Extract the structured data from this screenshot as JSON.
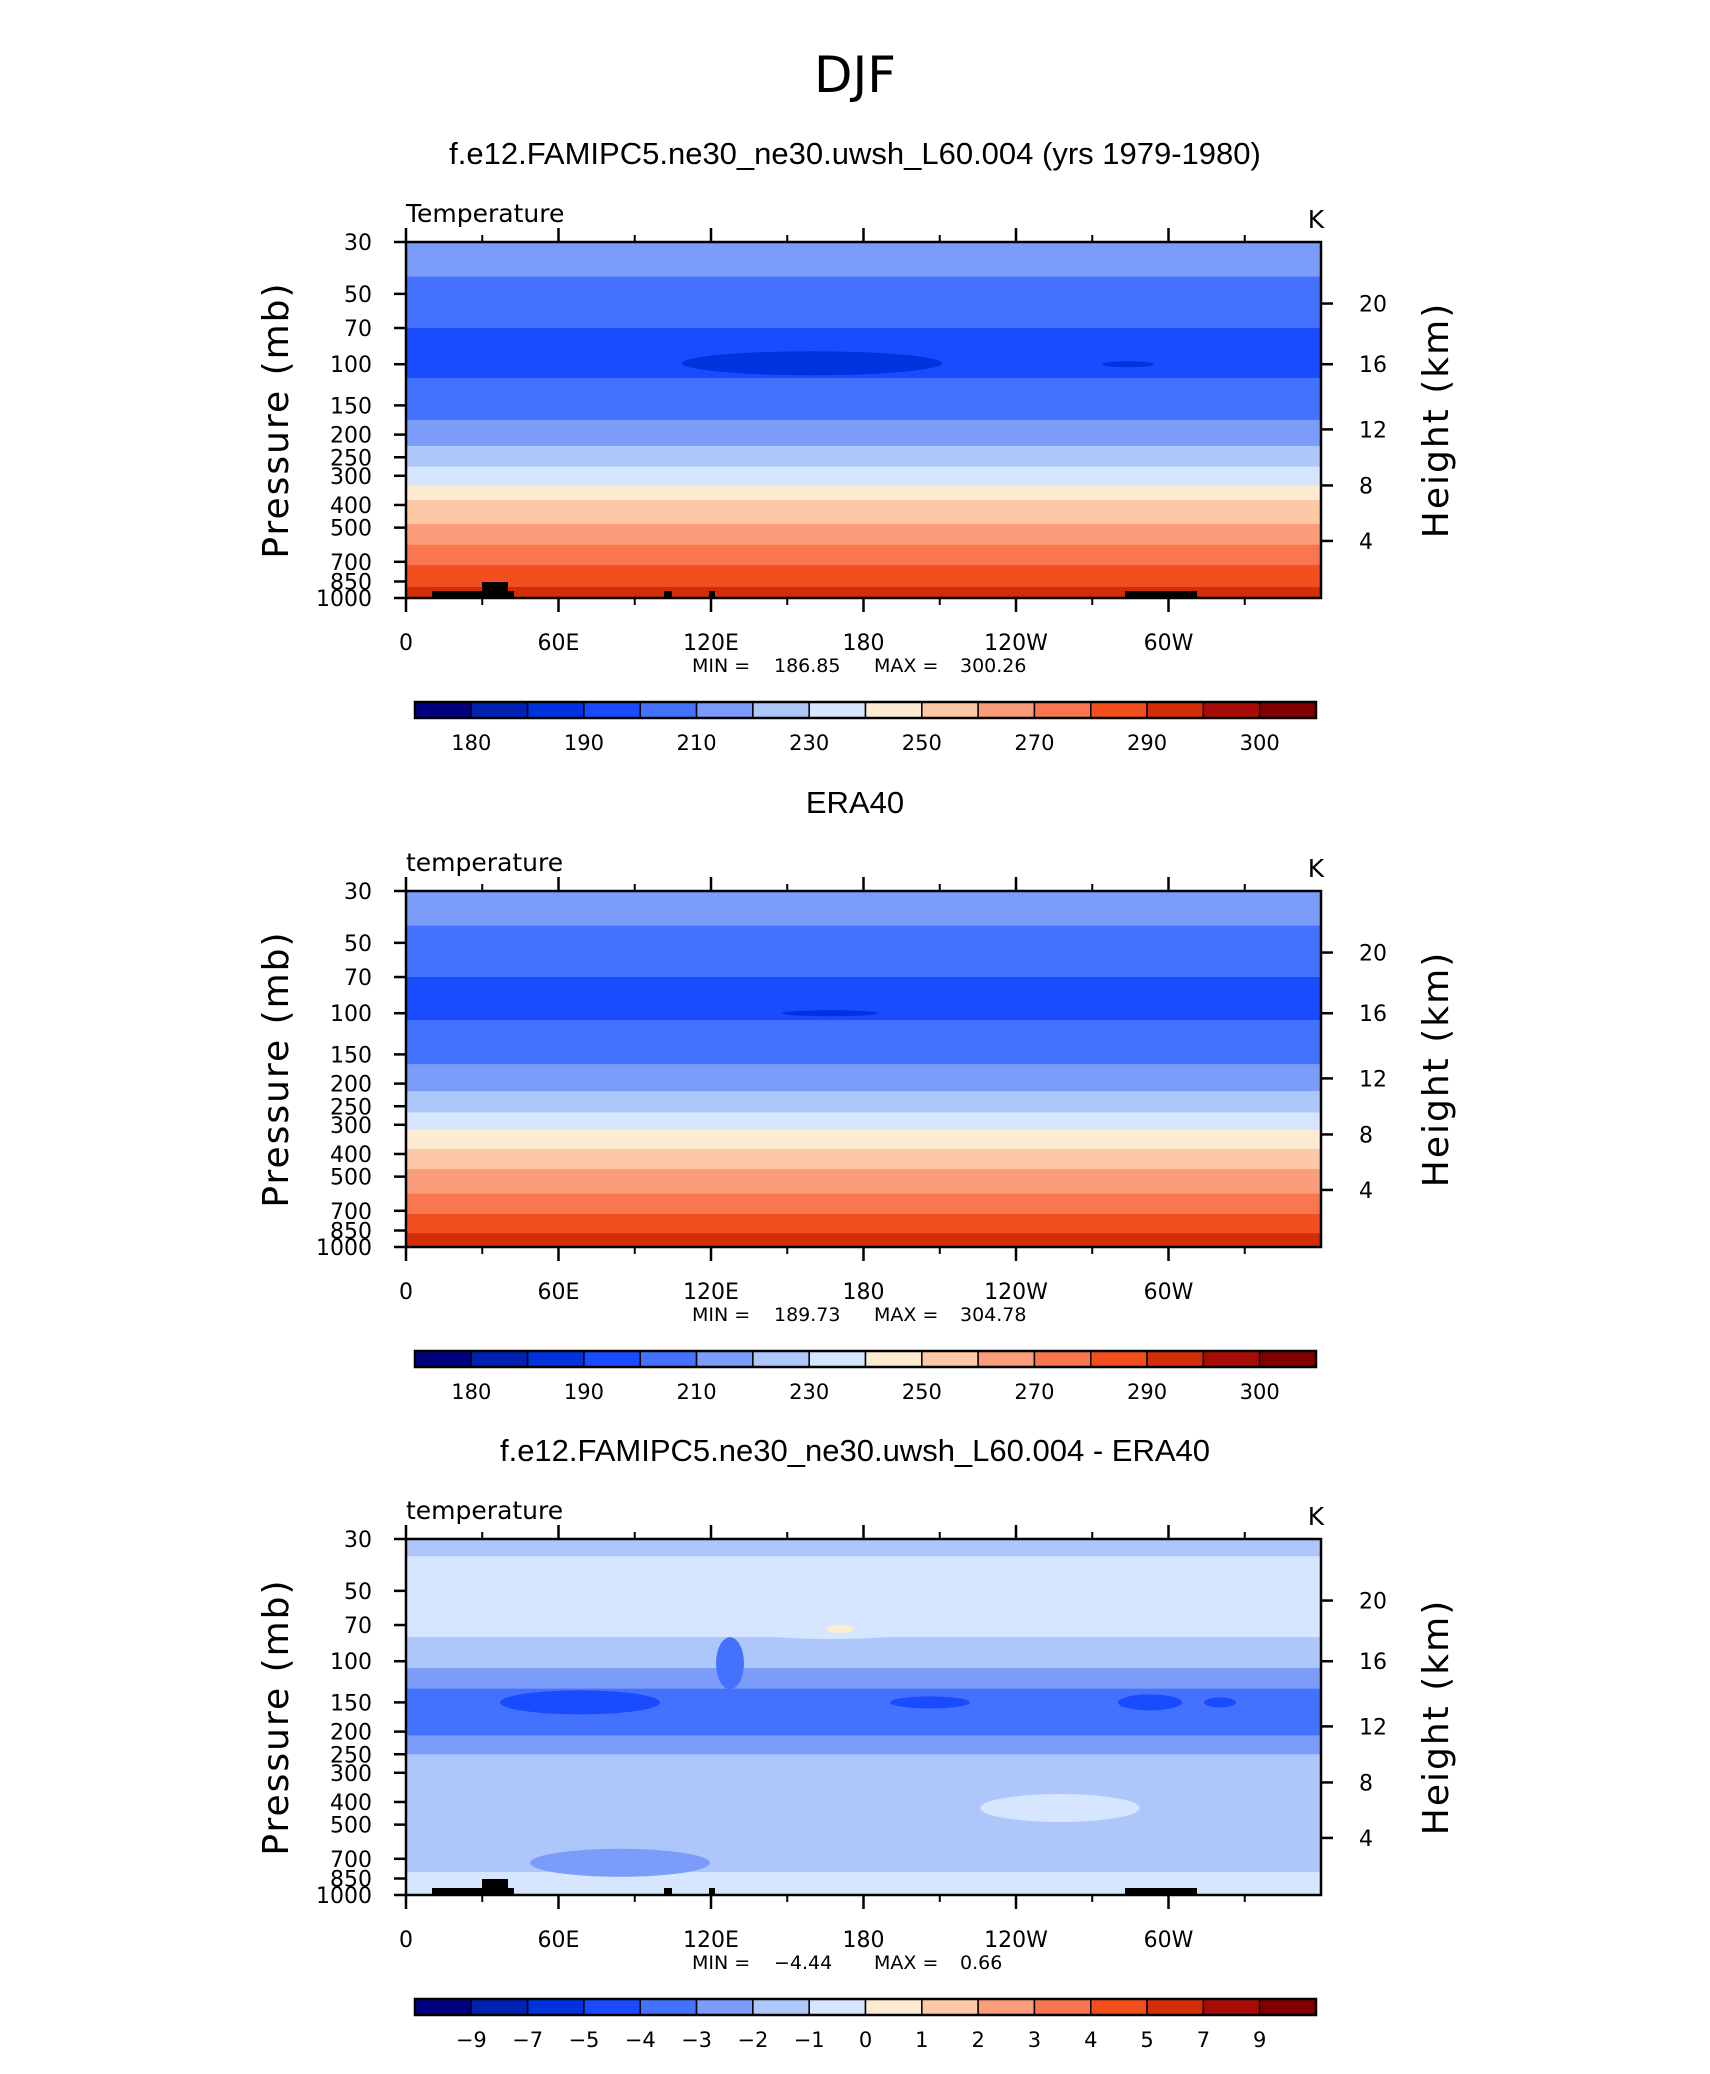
{
  "title": "DJF",
  "panels": [
    {
      "title": "f.e12.FAMIPC5.ne30_ne30.uwsh_L60.004 (yrs 1979-1980)",
      "left_label": "Temperature",
      "units": "K",
      "ylabel": "Pressure  (mb)",
      "ylabel_right": "Height  (km)",
      "min_label": "MIN = ",
      "min_value": "186.85",
      "max_label": "MAX = ",
      "max_value": "300.26",
      "colorbar": "abs",
      "topo": true,
      "field": "model"
    },
    {
      "title": "ERA40",
      "left_label": "temperature",
      "units": "K",
      "ylabel": "Pressure  (mb)",
      "ylabel_right": "Height  (km)",
      "min_label": "MIN = ",
      "min_value": "189.73",
      "max_label": "MAX = ",
      "max_value": "304.78",
      "colorbar": "abs",
      "topo": false,
      "field": "obs"
    },
    {
      "title": "f.e12.FAMIPC5.ne30_ne30.uwsh_L60.004 - ERA40",
      "left_label": "temperature",
      "units": "K",
      "ylabel": "Pressure  (mb)",
      "ylabel_right": "Height  (km)",
      "min_label": "MIN = ",
      "min_value": "−4.44",
      "max_label": "MAX = ",
      "max_value": "0.66",
      "colorbar": "diff",
      "topo": true,
      "field": "diff"
    }
  ],
  "chart_data": {
    "type": "heatmap",
    "x_ticks": [
      "0",
      "60E",
      "120E",
      "180",
      "120W",
      "60W"
    ],
    "x_tick_values": [
      0,
      60,
      120,
      180,
      240,
      300
    ],
    "xlim": [
      0,
      360
    ],
    "y_ticks": [
      "30",
      "50",
      "70",
      "100",
      "150",
      "200",
      "250",
      "300",
      "400",
      "500",
      "700",
      "850",
      "1000"
    ],
    "y_tick_values": [
      30,
      50,
      70,
      100,
      150,
      200,
      250,
      300,
      400,
      500,
      700,
      850,
      1000
    ],
    "ylim": [
      1000,
      30
    ],
    "y_scale": "log",
    "y_right_ticks": [
      "20",
      "16",
      "12",
      "8",
      "4"
    ],
    "y_right_values": [
      20,
      16,
      12,
      8,
      4
    ],
    "colorbars": {
      "abs": {
        "labels": [
          "180",
          "190",
          "210",
          "230",
          "250",
          "270",
          "290",
          "300"
        ],
        "colors": [
          "#00007f",
          "#0022b2",
          "#0033dd",
          "#1a4cff",
          "#4472ff",
          "#7b9cf8",
          "#aec7fb",
          "#d5e6fe",
          "#fdebd2",
          "#fcc8a6",
          "#fb9c7a",
          "#f9764f",
          "#f24e1e",
          "#d22e08",
          "#a80c06",
          "#800000"
        ]
      },
      "diff": {
        "labels": [
          "−9",
          "−7",
          "−5",
          "−4",
          "−3",
          "−2",
          "−1",
          "0",
          "1",
          "2",
          "3",
          "4",
          "5",
          "7",
          "9"
        ],
        "colors": [
          "#00007f",
          "#0022b2",
          "#0033dd",
          "#1a4cff",
          "#4472ff",
          "#7b9cf8",
          "#aec7fb",
          "#d5e6fe",
          "#fdebd2",
          "#fcc8a6",
          "#fb9c7a",
          "#f9764f",
          "#f24e1e",
          "#d22e08",
          "#a80c06",
          "#800000"
        ]
      }
    },
    "temperature_profile_model": [
      {
        "p": 30,
        "t": 215
      },
      {
        "p": 50,
        "t": 207
      },
      {
        "p": 70,
        "t": 200
      },
      {
        "p": 100,
        "t": 198
      },
      {
        "p": 150,
        "t": 205
      },
      {
        "p": 200,
        "t": 215
      },
      {
        "p": 250,
        "t": 225
      },
      {
        "p": 300,
        "t": 235
      },
      {
        "p": 400,
        "t": 252
      },
      {
        "p": 500,
        "t": 262
      },
      {
        "p": 700,
        "t": 278
      },
      {
        "p": 850,
        "t": 287
      },
      {
        "p": 1000,
        "t": 298
      }
    ],
    "temperature_profile_obs": [
      {
        "p": 30,
        "t": 215
      },
      {
        "p": 50,
        "t": 208
      },
      {
        "p": 70,
        "t": 200
      },
      {
        "p": 100,
        "t": 199
      },
      {
        "p": 150,
        "t": 206
      },
      {
        "p": 200,
        "t": 216
      },
      {
        "p": 250,
        "t": 226
      },
      {
        "p": 300,
        "t": 236
      },
      {
        "p": 400,
        "t": 253
      },
      {
        "p": 500,
        "t": 263
      },
      {
        "p": 700,
        "t": 279
      },
      {
        "p": 850,
        "t": 288
      },
      {
        "p": 1000,
        "t": 299
      }
    ],
    "difference_profile": [
      {
        "p": 30,
        "dt": -1.2
      },
      {
        "p": 50,
        "dt": -0.5
      },
      {
        "p": 70,
        "dt": -0.6
      },
      {
        "p": 100,
        "dt": -1.6
      },
      {
        "p": 150,
        "dt": -3.5
      },
      {
        "p": 200,
        "dt": -3.2
      },
      {
        "p": 250,
        "dt": -2.0
      },
      {
        "p": 300,
        "dt": -1.5
      },
      {
        "p": 400,
        "dt": -1.2
      },
      {
        "p": 500,
        "dt": -1.3
      },
      {
        "p": 700,
        "dt": -1.6
      },
      {
        "p": 850,
        "dt": -0.6
      },
      {
        "p": 1000,
        "dt": -0.4
      }
    ]
  }
}
